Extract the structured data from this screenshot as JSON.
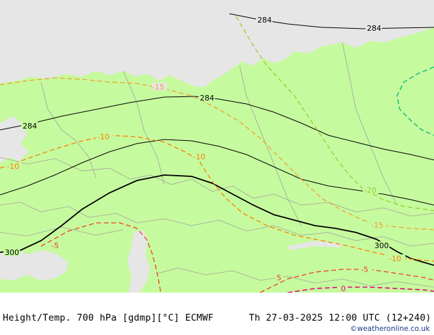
{
  "map": {
    "colors": {
      "land": "#c6fa9e",
      "sea_ice": "#e6e6e6",
      "coast": "#a0a0a0",
      "height_contour": "#000000",
      "temp_m20": "#9acd32",
      "temp_m15": "#f0a030",
      "temp_m10": "#ff7f00",
      "temp_m5": "#f03c28",
      "temp_0": "#e6007e",
      "temp_m25": "#20c080"
    },
    "height_labels": [
      "284",
      "284",
      "284",
      "284",
      "300",
      "300"
    ],
    "temp_labels": [
      "-15",
      "-10",
      "-10",
      "-10",
      "-5",
      "-20",
      "-15",
      "-10",
      "-5",
      "5",
      "0"
    ]
  },
  "footer": {
    "title": "Height/Temp. 700 hPa [gdmp][°C] ECMWF",
    "time": "Th 27-03-2025 12:00 UTC (12+240)",
    "credit": "©weatheronline.co.uk"
  }
}
